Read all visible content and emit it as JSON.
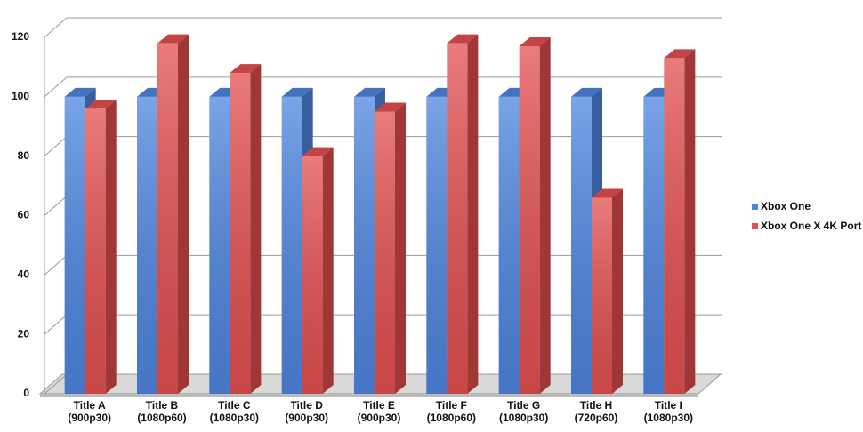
{
  "chart_data": {
    "type": "bar3d",
    "categories": [
      [
        "Title A",
        "(900p30)"
      ],
      [
        "Title B",
        "(1080p60)"
      ],
      [
        "Title C",
        "(1080p30)"
      ],
      [
        "Title D",
        "(900p30)"
      ],
      [
        "Title E",
        "(900p30)"
      ],
      [
        "Title F",
        "(1080p60)"
      ],
      [
        "Title G",
        "(1080p30)"
      ],
      [
        "Title H",
        "(720p60)"
      ],
      [
        "Title I",
        "(1080p30)"
      ]
    ],
    "series": [
      {
        "name": "Xbox One",
        "color": "#4f86e0",
        "values": [
          100,
          100,
          100,
          100,
          100,
          100,
          100,
          100,
          100
        ]
      },
      {
        "name": "Xbox One X 4K Port",
        "color": "#e45050",
        "values": [
          96,
          118,
          108,
          80,
          95,
          118,
          117,
          66,
          113
        ]
      }
    ],
    "ylim": [
      0,
      120
    ],
    "yticks": [
      0,
      20,
      40,
      60,
      80,
      100,
      120
    ],
    "grid": true,
    "legend": "right"
  }
}
